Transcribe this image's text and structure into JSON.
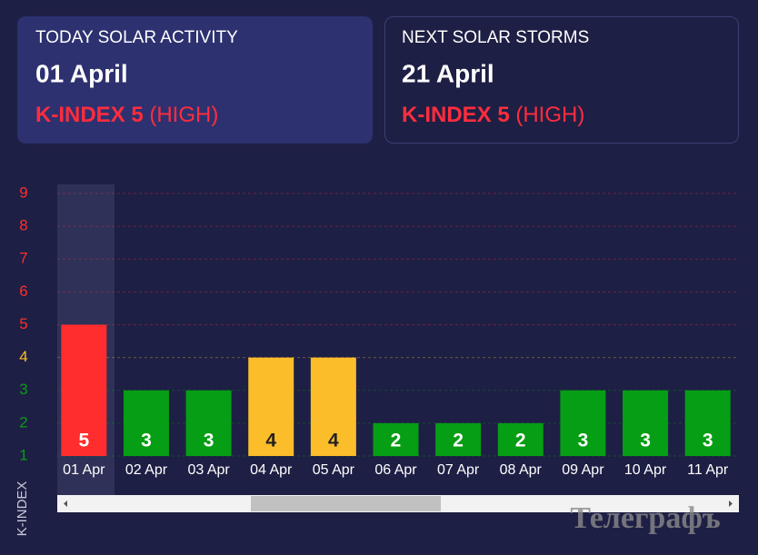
{
  "cards": [
    {
      "label": "TODAY SOLAR ACTIVITY",
      "date": "01 April",
      "index": "K-INDEX 5",
      "level": "(HIGH)"
    },
    {
      "label": "NEXT SOLAR STORMS",
      "date": "21 April",
      "index": "K-INDEX 5",
      "level": "(HIGH)"
    }
  ],
  "chart_data": {
    "type": "bar",
    "ylabel": "K-INDEX",
    "categories": [
      "01 Apr",
      "02 Apr",
      "03 Apr",
      "04 Apr",
      "05 Apr",
      "06 Apr",
      "07 Apr",
      "08 Apr",
      "09 Apr",
      "10 Apr",
      "11 Apr"
    ],
    "values": [
      5,
      3,
      3,
      4,
      4,
      2,
      2,
      2,
      3,
      3,
      3
    ],
    "colors": [
      "#ff2d2d",
      "#069e14",
      "#069e14",
      "#fbbd2a",
      "#fbbd2a",
      "#069e14",
      "#069e14",
      "#069e14",
      "#069e14",
      "#069e14",
      "#069e14"
    ],
    "ylim": [
      1,
      9
    ],
    "yticks": [
      1,
      2,
      3,
      4,
      5,
      6,
      7,
      8,
      9
    ],
    "ytick_colors": [
      "#069e14",
      "#069e14",
      "#069e14",
      "#fbbd2a",
      "#ff2d2d",
      "#ff2d2d",
      "#ff2d2d",
      "#ff2d2d",
      "#ff2d2d"
    ],
    "grid": true
  },
  "watermark": "Телеграфъ"
}
